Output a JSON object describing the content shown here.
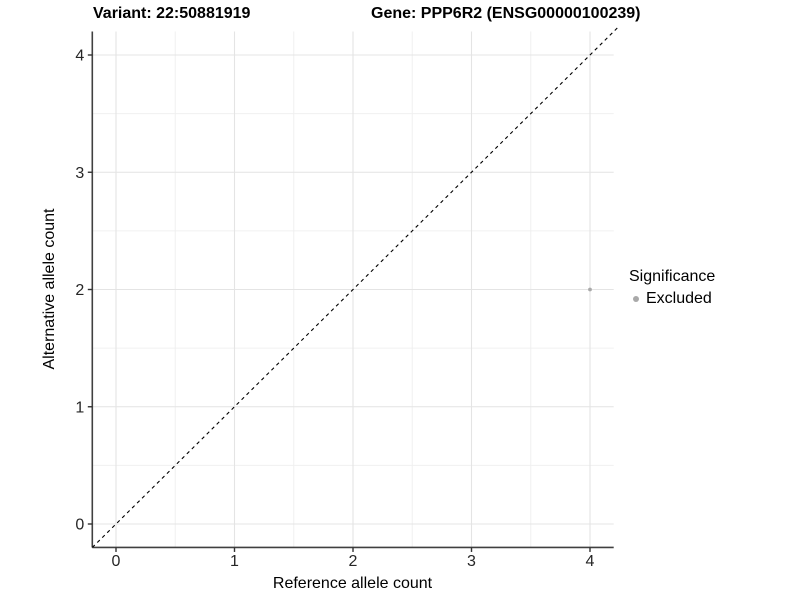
{
  "chart_data": {
    "type": "scatter",
    "title_left": "Variant: 22:50881919",
    "title_right": "Gene: PPP6R2 (ENSG00000100239)",
    "xlabel": "Reference allele count",
    "ylabel": "Alternative allele count",
    "xlim": [
      -0.2,
      4.2
    ],
    "ylim": [
      -0.2,
      4.2
    ],
    "x_ticks": [
      0,
      1,
      2,
      3,
      4
    ],
    "y_ticks": [
      0,
      1,
      2,
      3,
      4
    ],
    "grid": {
      "show_major": true,
      "show_minor": true,
      "major_color": "#e4e4e4",
      "minor_color": "#f0f0f0"
    },
    "reference_line": {
      "description": "identity line y = x",
      "style": "dashed",
      "color": "#000000",
      "from": [
        -0.2,
        -0.2
      ],
      "to": [
        4.23,
        4.23
      ]
    },
    "series": [
      {
        "name": "Excluded",
        "color": "#a9a9a9",
        "marker": "circle",
        "points": [
          {
            "x": 4,
            "y": 2
          }
        ]
      }
    ],
    "legend": {
      "title": "Significance",
      "position": "right",
      "entries": [
        {
          "label": "Excluded",
          "color": "#a9a9a9",
          "marker": "circle"
        }
      ]
    },
    "axis_style": {
      "axis_line_color": "#404040",
      "tick_color": "#333333",
      "tick_label_color": "#262626",
      "tick_label_size": 16
    }
  }
}
